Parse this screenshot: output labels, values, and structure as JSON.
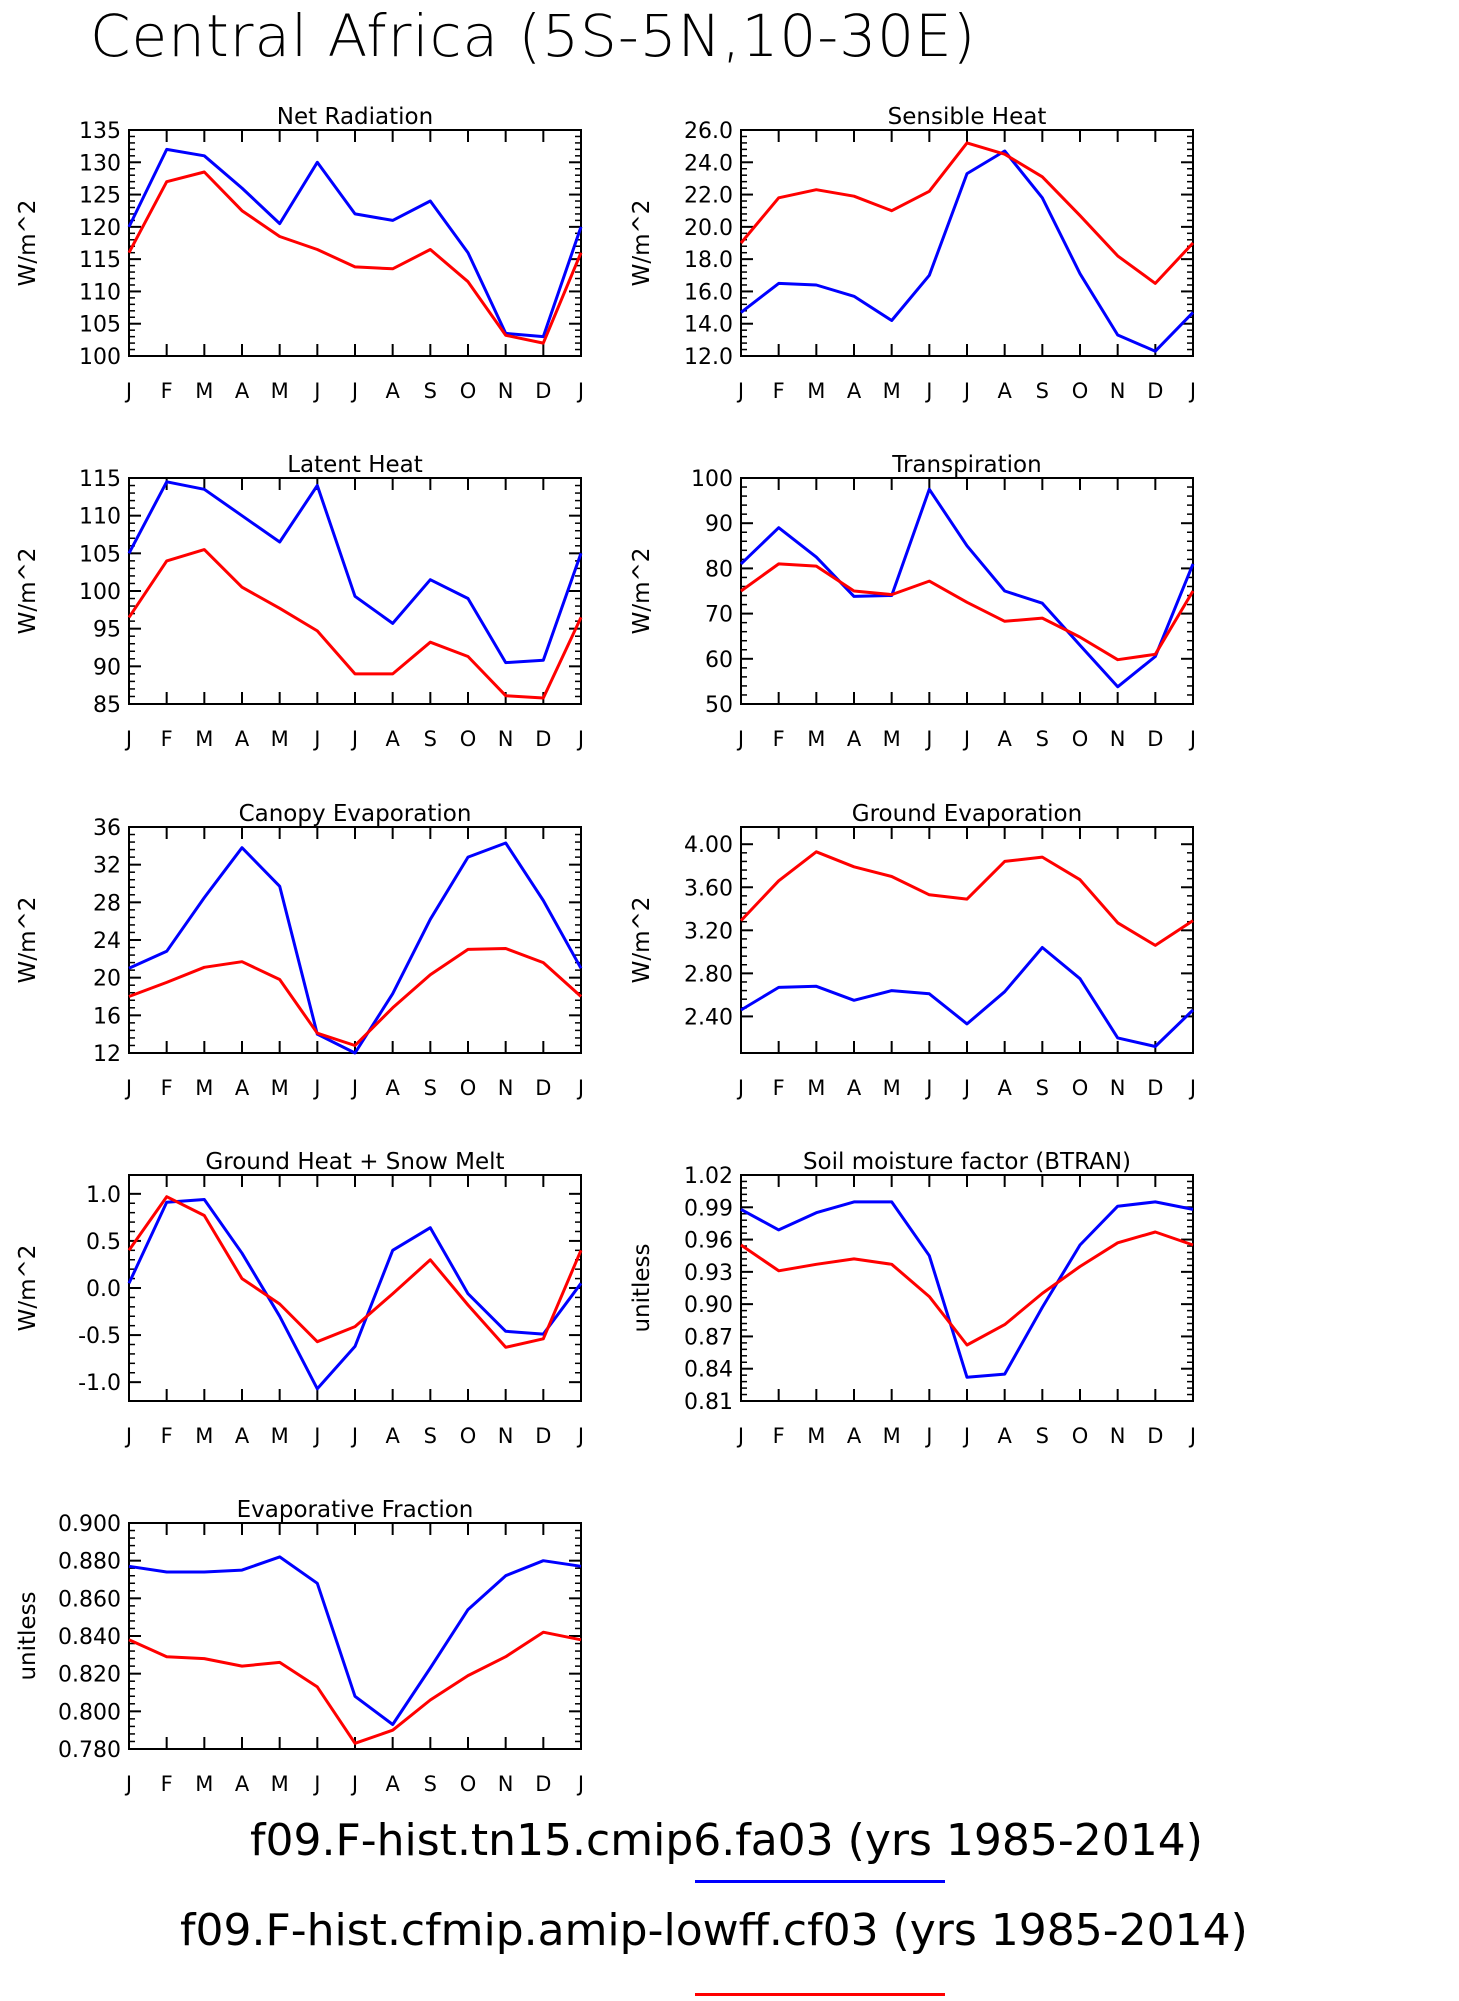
{
  "title": "Central Africa (5S-5N,10-30E)",
  "months": [
    "J",
    "F",
    "M",
    "A",
    "M",
    "J",
    "J",
    "A",
    "S",
    "O",
    "N",
    "D",
    "J"
  ],
  "colors": {
    "case1": "#0000ff",
    "case2": "#ff0000"
  },
  "legend": [
    {
      "label": "f09.F-hist.tn15.cmip6.fa03 (yrs 1985-2014)",
      "color": "#0000ff"
    },
    {
      "label": "f09.F-hist.cfmip.amip-lowff.cf03 (yrs 1985-2014)",
      "color": "#ff0000"
    }
  ],
  "chart_data": [
    {
      "type": "line",
      "title": "Net Radiation",
      "ylabel": "W/m^2",
      "ylim": [
        100,
        135
      ],
      "yticks": [
        "100",
        "105",
        "110",
        "115",
        "120",
        "125",
        "130",
        "135"
      ],
      "series": [
        {
          "color": "#0000ff",
          "values": [
            120,
            132,
            131,
            126,
            120.5,
            130,
            122,
            121,
            124,
            116,
            103.5,
            103,
            120
          ]
        },
        {
          "color": "#ff0000",
          "values": [
            116,
            127,
            128.5,
            122.5,
            118.5,
            116.5,
            113.8,
            113.5,
            116.5,
            111.5,
            103.2,
            102,
            116
          ]
        }
      ]
    },
    {
      "type": "line",
      "title": "Sensible Heat",
      "ylabel": "W/m^2",
      "ylim": [
        12,
        26
      ],
      "yticks": [
        "12.0",
        "14.0",
        "16.0",
        "18.0",
        "20.0",
        "22.0",
        "24.0",
        "26.0"
      ],
      "series": [
        {
          "color": "#0000ff",
          "values": [
            14.7,
            16.5,
            16.4,
            15.7,
            14.2,
            17.0,
            23.3,
            24.7,
            21.8,
            17.1,
            13.3,
            12.3,
            14.7
          ]
        },
        {
          "color": "#ff0000",
          "values": [
            19.0,
            21.8,
            22.3,
            21.9,
            21.0,
            22.2,
            25.2,
            24.5,
            23.1,
            20.7,
            18.2,
            16.5,
            19.0
          ]
        }
      ]
    },
    {
      "type": "line",
      "title": "Latent Heat",
      "ylabel": "W/m^2",
      "ylim": [
        85,
        115
      ],
      "yticks": [
        "85",
        "90",
        "95",
        "100",
        "105",
        "110",
        "115"
      ],
      "series": [
        {
          "color": "#0000ff",
          "values": [
            105,
            114.5,
            113.5,
            110,
            106.5,
            114,
            99.3,
            95.7,
            101.5,
            99,
            90.5,
            90.8,
            105
          ]
        },
        {
          "color": "#ff0000",
          "values": [
            96.5,
            104,
            105.5,
            100.5,
            97.7,
            94.7,
            89,
            89,
            93.2,
            91.3,
            86.1,
            85.8,
            96.5
          ]
        }
      ]
    },
    {
      "type": "line",
      "title": "Transpiration",
      "ylabel": "W/m^2",
      "ylim": [
        50,
        100
      ],
      "yticks": [
        "50",
        "60",
        "70",
        "80",
        "90",
        "100"
      ],
      "series": [
        {
          "color": "#0000ff",
          "values": [
            81,
            89,
            82.5,
            73.8,
            74,
            97.5,
            85,
            75,
            72.3,
            63,
            53.8,
            60.5,
            81
          ]
        },
        {
          "color": "#ff0000",
          "values": [
            75,
            81,
            80.5,
            75,
            74.2,
            77.2,
            72.5,
            68.3,
            69,
            64.8,
            59.8,
            61,
            75
          ]
        }
      ]
    },
    {
      "type": "line",
      "title": "Canopy Evaporation",
      "ylabel": "W/m^2",
      "ylim": [
        12,
        36
      ],
      "yticks": [
        "12",
        "16",
        "20",
        "24",
        "28",
        "32",
        "36"
      ],
      "series": [
        {
          "color": "#0000ff",
          "values": [
            21,
            22.8,
            28.5,
            33.8,
            29.7,
            14,
            12,
            18.3,
            26.2,
            32.8,
            34.3,
            28.2,
            21
          ]
        },
        {
          "color": "#ff0000",
          "values": [
            18,
            19.5,
            21.1,
            21.7,
            19.8,
            14.1,
            12.8,
            16.8,
            20.3,
            23,
            23.1,
            21.6,
            18
          ]
        }
      ]
    },
    {
      "type": "line",
      "title": "Ground Evaporation",
      "ylabel": "W/m^2",
      "ylim": [
        2.06,
        4.16
      ],
      "yticks": [
        "2.40",
        "2.80",
        "3.20",
        "3.60",
        "4.00"
      ],
      "ytick_values": [
        2.4,
        2.8,
        3.2,
        3.6,
        4.0
      ],
      "series": [
        {
          "color": "#0000ff",
          "values": [
            2.46,
            2.67,
            2.68,
            2.55,
            2.64,
            2.61,
            2.33,
            2.63,
            3.04,
            2.75,
            2.2,
            2.12,
            2.46
          ]
        },
        {
          "color": "#ff0000",
          "values": [
            3.29,
            3.66,
            3.93,
            3.79,
            3.7,
            3.53,
            3.49,
            3.84,
            3.88,
            3.67,
            3.27,
            3.06,
            3.29
          ]
        }
      ]
    },
    {
      "type": "line",
      "title": "Ground Heat + Snow Melt",
      "ylabel": "W/m^2",
      "ylim": [
        -1.2,
        1.2
      ],
      "yticks": [
        "-1.0",
        "-0.5",
        "0.0",
        "0.5",
        "1.0"
      ],
      "ytick_values": [
        -1.0,
        -0.5,
        0.0,
        0.5,
        1.0
      ],
      "series": [
        {
          "color": "#0000ff",
          "values": [
            0.05,
            0.91,
            0.94,
            0.37,
            -0.3,
            -1.07,
            -0.62,
            0.4,
            0.64,
            -0.06,
            -0.46,
            -0.49,
            0.05
          ]
        },
        {
          "color": "#ff0000",
          "values": [
            0.4,
            0.97,
            0.77,
            0.1,
            -0.17,
            -0.57,
            -0.41,
            -0.06,
            0.3,
            -0.18,
            -0.63,
            -0.54,
            0.4
          ]
        }
      ]
    },
    {
      "type": "line",
      "title": "Soil moisture factor (BTRAN)",
      "ylabel": "unitless",
      "ylim": [
        0.81,
        1.02
      ],
      "yticks": [
        "0.81",
        "0.84",
        "0.87",
        "0.90",
        "0.93",
        "0.96",
        "0.99",
        "1.02"
      ],
      "series": [
        {
          "color": "#0000ff",
          "values": [
            0.988,
            0.969,
            0.985,
            0.995,
            0.995,
            0.945,
            0.832,
            0.835,
            0.897,
            0.955,
            0.991,
            0.995,
            0.988
          ]
        },
        {
          "color": "#ff0000",
          "values": [
            0.955,
            0.931,
            0.937,
            0.942,
            0.937,
            0.907,
            0.862,
            0.881,
            0.91,
            0.935,
            0.957,
            0.967,
            0.955
          ]
        }
      ]
    },
    {
      "type": "line",
      "title": "Evaporative Fraction",
      "ylabel": "unitless",
      "ylim": [
        0.78,
        0.9
      ],
      "yticks": [
        "0.780",
        "0.800",
        "0.820",
        "0.840",
        "0.860",
        "0.880",
        "0.900"
      ],
      "series": [
        {
          "color": "#0000ff",
          "values": [
            0.877,
            0.874,
            0.874,
            0.875,
            0.882,
            0.868,
            0.808,
            0.793,
            0.823,
            0.854,
            0.872,
            0.88,
            0.877
          ]
        },
        {
          "color": "#ff0000",
          "values": [
            0.838,
            0.829,
            0.828,
            0.824,
            0.826,
            0.813,
            0.783,
            0.79,
            0.806,
            0.819,
            0.829,
            0.842,
            0.838
          ]
        }
      ]
    }
  ]
}
